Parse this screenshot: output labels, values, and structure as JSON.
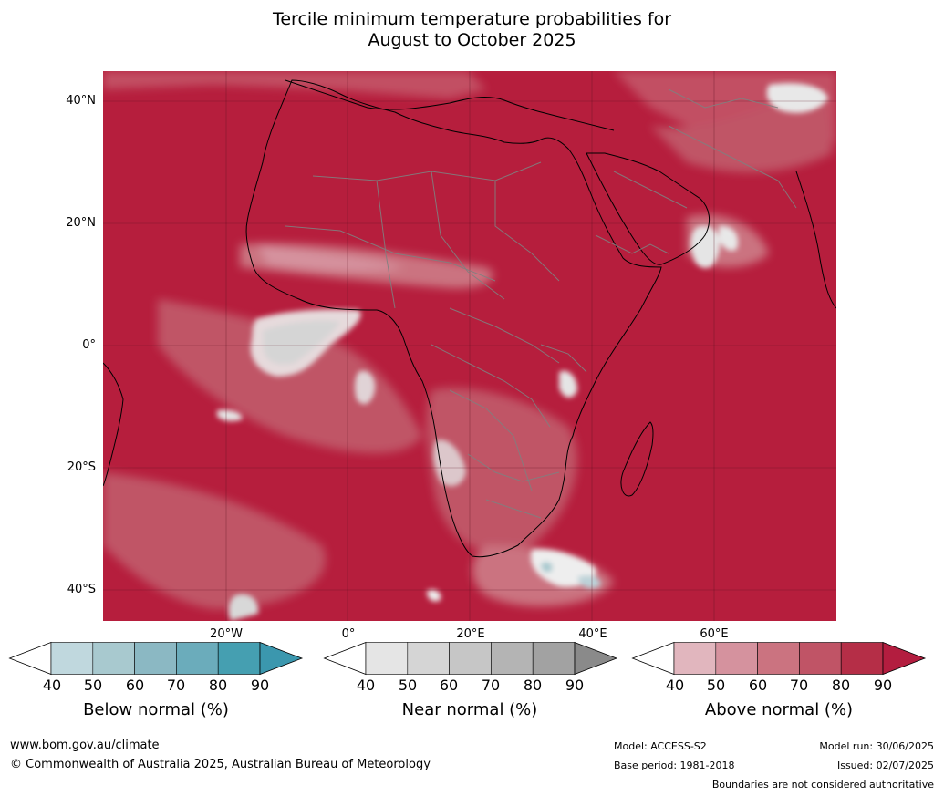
{
  "title_line1": "Tercile minimum temperature probabilities for",
  "title_line2": "August to October 2025",
  "lat_labels": [
    "40°N",
    "20°N",
    "0°",
    "20°S",
    "40°S"
  ],
  "lon_labels": [
    "20°W",
    "0°",
    "20°E",
    "40°E",
    "60°E"
  ],
  "colorbars": [
    {
      "title": "Below normal (%)",
      "ticks": [
        "40",
        "50",
        "60",
        "70",
        "80",
        "90"
      ],
      "colors": [
        "#ffffff",
        "#c0d8de",
        "#a8c9cf",
        "#8bb8c3",
        "#6bacbb",
        "#459fb1",
        "#3b97ae"
      ]
    },
    {
      "title": "Near normal (%)",
      "ticks": [
        "40",
        "50",
        "60",
        "70",
        "80",
        "90"
      ],
      "colors": [
        "#ffffff",
        "#e5e5e5",
        "#d5d5d5",
        "#c6c6c6",
        "#b4b4b4",
        "#a2a2a2",
        "#8a8a8a"
      ]
    },
    {
      "title": "Above normal (%)",
      "ticks": [
        "40",
        "50",
        "60",
        "70",
        "80",
        "90"
      ],
      "colors": [
        "#ffffff",
        "#e1b6be",
        "#d5929e",
        "#cb7380",
        "#c05466",
        "#b52e47",
        "#b31d3f"
      ]
    }
  ],
  "footer": {
    "website": "www.bom.gov.au/climate",
    "copyright": "© Commonwealth of Australia 2025, Australian Bureau of Meteorology",
    "model": "Model: ACCESS-S2",
    "base_period": "Base period: 1981-2018",
    "model_run": "Model run: 30/06/2025",
    "issued": "Issued: 02/07/2025",
    "boundaries": "Boundaries are not considered authoritative"
  }
}
